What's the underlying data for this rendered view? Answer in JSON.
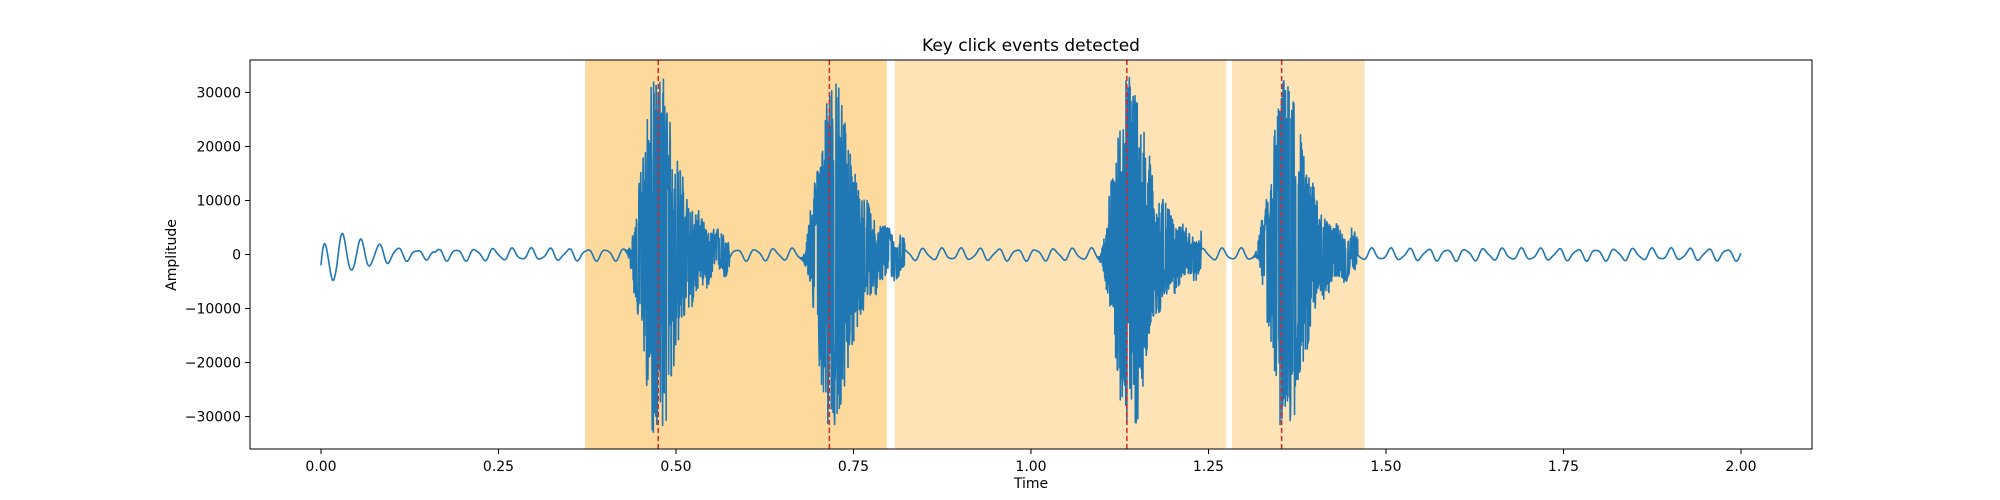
{
  "chart_data": {
    "type": "line",
    "title": "Key click events detected",
    "xlabel": "Time",
    "ylabel": "Amplitude",
    "xlim": [
      -0.1,
      2.1
    ],
    "ylim": [
      -36000,
      36000
    ],
    "xticks": [
      0.0,
      0.25,
      0.5,
      0.75,
      1.0,
      1.25,
      1.5,
      1.75,
      2.0
    ],
    "xtick_labels": [
      "0.00",
      "0.25",
      "0.50",
      "0.75",
      "1.00",
      "1.25",
      "1.50",
      "1.75",
      "2.00"
    ],
    "yticks": [
      -30000,
      -20000,
      -10000,
      0,
      10000,
      20000,
      30000
    ],
    "ytick_labels": [
      "−30000",
      "−20000",
      "−10000",
      "0",
      "10000",
      "20000",
      "30000"
    ],
    "grid": false,
    "colors": {
      "signal": "#1f77b4",
      "event_line": "#d62728",
      "span": "#fdb94a"
    },
    "spans": [
      {
        "start": 0.372,
        "end": 0.797,
        "alpha": 0.55
      },
      {
        "start": 0.808,
        "end": 1.275,
        "alpha": 0.4
      },
      {
        "start": 1.283,
        "end": 1.47,
        "alpha": 0.4
      }
    ],
    "events": [
      0.475,
      0.716,
      1.135,
      1.353
    ],
    "signal": {
      "x_start": 0.0,
      "x_end": 2.0,
      "baseline_amplitude": 1000,
      "start_transient_peak": 4500,
      "bursts": [
        {
          "center": 0.465,
          "peak_pos": 33000,
          "peak_neg": -33000
        },
        {
          "center": 0.712,
          "peak_pos": 33000,
          "peak_neg": -32500
        },
        {
          "center": 1.13,
          "peak_pos": 33000,
          "peak_neg": -33000
        },
        {
          "center": 1.35,
          "peak_pos": 33000,
          "peak_neg": -33000
        }
      ]
    }
  }
}
